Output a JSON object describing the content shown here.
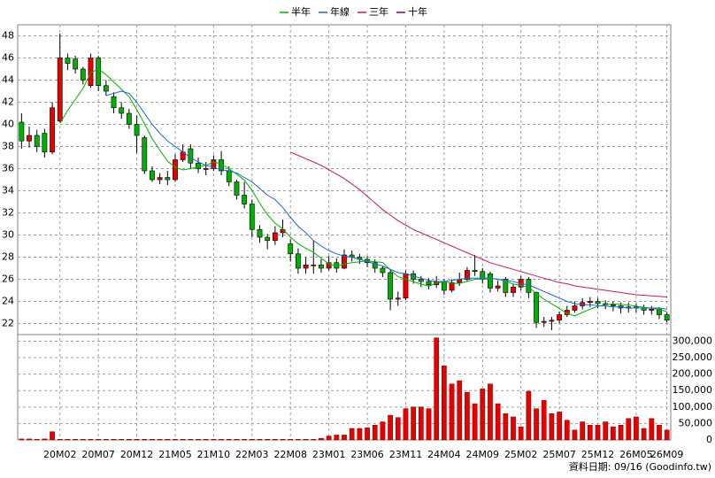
{
  "chart_data": {
    "type": "candlestick",
    "legend": [
      {
        "name": "半年",
        "color": "#00b400",
        "values": [
          null,
          null,
          null,
          null,
          null,
          40.1,
          41.25,
          42.25,
          43.25,
          44.67,
          45,
          44.5,
          43.83,
          43.17,
          42.5,
          41.33,
          40.05,
          38.72,
          37.67,
          36.67,
          36.13,
          35.88,
          36,
          36.17,
          36.3,
          36.6,
          36.43,
          35.98,
          35.5,
          34.97,
          34.05,
          32.88,
          31.83,
          31.07,
          30.55,
          29.8,
          29.22,
          28.8,
          28.43,
          27.9,
          27.4,
          27.18,
          27.38,
          27.5,
          27.58,
          27.67,
          27.58,
          27.52,
          26.85,
          26.23,
          26.02,
          25.77,
          25.57,
          25.38,
          25.65,
          25.77,
          25.63,
          25.63,
          25.8,
          26,
          26.03,
          26.07,
          26.02,
          25.82,
          25.57,
          25.45,
          25.25,
          24.73,
          24.2,
          23.78,
          23.37,
          22.9,
          22.7,
          23,
          23.3,
          23.55,
          23.7,
          23.77,
          23.73,
          23.67,
          23.57,
          23.47,
          23.4,
          23.27,
          23.08
        ]
      },
      {
        "name": "年線",
        "color": "#1e64dc",
        "values": [
          null,
          null,
          null,
          null,
          null,
          null,
          null,
          null,
          null,
          null,
          null,
          42.6,
          42.8,
          43,
          42.8,
          42,
          41,
          40,
          39.2,
          38.5,
          38,
          37.5,
          37,
          36.6,
          36.3,
          36.1,
          35.9,
          35.8,
          35.6,
          35.2,
          34.8,
          34.2,
          33.6,
          33.2,
          32.5,
          31.6,
          30.8,
          30.2,
          29.5,
          29,
          28.6,
          28.3,
          28.1,
          28,
          27.8,
          27.6,
          27.4,
          27.2,
          26.9,
          26.6,
          26.5,
          26.3,
          26.1,
          25.9,
          25.8,
          25.8,
          25.9,
          26,
          26.1,
          26.1,
          26.1,
          26.1,
          26,
          25.9,
          25.8,
          25.6,
          25.5,
          25.2,
          24.9,
          24.6,
          24.3,
          24,
          23.8,
          23.7,
          23.7,
          23.6,
          23.6,
          23.5,
          23.5,
          23.4,
          23.4,
          23.4,
          23.4,
          23.4,
          23.3
        ]
      },
      {
        "name": "三年",
        "color": "#c8146e",
        "values": [
          null,
          null,
          null,
          null,
          null,
          null,
          null,
          null,
          null,
          null,
          null,
          null,
          null,
          null,
          null,
          null,
          null,
          null,
          null,
          null,
          null,
          null,
          null,
          null,
          null,
          null,
          null,
          null,
          null,
          null,
          null,
          null,
          null,
          null,
          null,
          37.5,
          37.2,
          36.9,
          36.6,
          36.3,
          35.9,
          35.5,
          35.1,
          34.6,
          34.1,
          33.5,
          32.9,
          32.3,
          31.8,
          31.3,
          30.9,
          30.5,
          30.2,
          29.9,
          29.6,
          29.3,
          29,
          28.7,
          28.4,
          28.1,
          27.8,
          27.5,
          27.3,
          27.1,
          26.9,
          26.7,
          26.5,
          26.3,
          26.1,
          25.9,
          25.7,
          25.6,
          25.4,
          25.3,
          25.2,
          25.1,
          25,
          24.9,
          24.8,
          24.7,
          24.6,
          24.55,
          24.5,
          24.45,
          24.4
        ]
      },
      {
        "name": "十年",
        "color": "#800080",
        "values": [
          null,
          null,
          null,
          null,
          null,
          null,
          null,
          null,
          null,
          null,
          null,
          null,
          null,
          null,
          null,
          null,
          null,
          null,
          null,
          null,
          null,
          null,
          null,
          null,
          null,
          null,
          null,
          null,
          null,
          null,
          null,
          null,
          null,
          null,
          null,
          null,
          null,
          null,
          null,
          null,
          null,
          null,
          null,
          null,
          null,
          null,
          null,
          null,
          null,
          null,
          null,
          null,
          null,
          null,
          null,
          null,
          null,
          null,
          null,
          null,
          null,
          null,
          null,
          null,
          null,
          null,
          null,
          null,
          null,
          null,
          null,
          null,
          null,
          null,
          null,
          null,
          null,
          null,
          null,
          null,
          null,
          null,
          null,
          null,
          null
        ]
      }
    ],
    "categories": [
      null,
      null,
      null,
      null,
      null,
      "20M02",
      null,
      null,
      null,
      null,
      "20M07",
      null,
      null,
      null,
      null,
      "20M12",
      null,
      null,
      null,
      null,
      "21M05",
      null,
      null,
      null,
      null,
      "21M10",
      null,
      null,
      null,
      null,
      "22M03",
      null,
      null,
      null,
      null,
      "22M08",
      null,
      null,
      null,
      null,
      "23M01",
      null,
      null,
      null,
      null,
      "23M06",
      null,
      null,
      null,
      null,
      "23M11",
      null,
      null,
      null,
      null,
      "24M04",
      null,
      null,
      null,
      null,
      "24M09",
      null,
      null,
      null,
      null,
      "25M02",
      null,
      null,
      null,
      null,
      "25M07",
      null,
      null,
      null,
      null,
      "25M12",
      null,
      null,
      null,
      null,
      "26M05",
      null,
      null,
      null,
      "26M09"
    ],
    "open": [
      40.2,
      38.5,
      39,
      39.2,
      37.5,
      40.3,
      46,
      45.9,
      45,
      43.5,
      46,
      43.5,
      42.5,
      41.5,
      41,
      40,
      38.8,
      35.8,
      35,
      35.2,
      35,
      36.8,
      37.8,
      36.5,
      36,
      36,
      36.8,
      35.8,
      34.8,
      33.6,
      32.8,
      30.5,
      29.8,
      29.5,
      30.2,
      29.2,
      28.3,
      27,
      27.3,
      27.3,
      27,
      27.5,
      27,
      28.2,
      28,
      27.8,
      27.5,
      27,
      26.6,
      24.2,
      24.3,
      26.5,
      26,
      25.8,
      25.5,
      25.8,
      25,
      25.7,
      26,
      26.8,
      26.7,
      26.5,
      25.2,
      26,
      24.8,
      25.3,
      26,
      24.8,
      22.1,
      22.2,
      22.3,
      22.8,
      23.2,
      23.6,
      23.9,
      24,
      23.8,
      23.7,
      23.6,
      23.4,
      23.5,
      23.4,
      23.2,
      23.3,
      22.8
    ],
    "high": [
      41,
      39.8,
      39.5,
      39.6,
      42,
      48.2,
      46.4,
      46.2,
      45.2,
      46.4,
      46.2,
      44,
      42.9,
      42,
      41.4,
      40.8,
      39,
      36.2,
      35.6,
      35.8,
      37.3,
      38.2,
      38.2,
      37,
      36.6,
      37.2,
      37.6,
      36.2,
      35,
      34.8,
      33.2,
      30.9,
      30.1,
      30.8,
      31.4,
      29.6,
      28.8,
      28,
      29.5,
      27.8,
      28.1,
      27.9,
      28.7,
      28.6,
      28.3,
      28.1,
      27.8,
      27.2,
      26.8,
      24.9,
      26.8,
      26.8,
      26.3,
      26.1,
      26.3,
      26,
      26,
      26.6,
      27.1,
      28.2,
      27,
      26.7,
      25.9,
      26.2,
      25.6,
      26.3,
      26.2,
      24.9,
      22.6,
      22.6,
      23.1,
      23.6,
      24,
      24.3,
      24.4,
      24.3,
      24.1,
      24,
      23.9,
      23.9,
      23.8,
      23.7,
      23.6,
      23.5,
      23
    ],
    "low": [
      37.8,
      37.9,
      37.5,
      37,
      37.3,
      40.2,
      44.9,
      44.6,
      43.6,
      43.3,
      43,
      42.6,
      41,
      40.5,
      39.6,
      37.4,
      35.5,
      34.8,
      34.6,
      34.5,
      34.8,
      36.6,
      36,
      35.6,
      35.4,
      35.8,
      35.4,
      34.4,
      33.2,
      32.4,
      29.8,
      29.3,
      28.7,
      29.1,
      29.8,
      27.6,
      26.5,
      26.5,
      26.5,
      26.6,
      26.8,
      26.6,
      26.9,
      27.6,
      27.4,
      27.1,
      26.6,
      26.2,
      23.2,
      23.6,
      24.1,
      25.6,
      25.3,
      25.1,
      25.2,
      24.6,
      24.8,
      25.4,
      25.8,
      26.3,
      25.6,
      24.8,
      24.9,
      24.4,
      24.4,
      25,
      24.3,
      21.6,
      21.7,
      21.4,
      22,
      22.6,
      23,
      23.3,
      23.5,
      23.4,
      23.3,
      23.1,
      22.9,
      23,
      23,
      22.8,
      22.8,
      22.4,
      22.1
    ],
    "close": [
      38.5,
      39,
      38,
      37.5,
      41.5,
      46,
      45.5,
      45,
      44,
      46,
      43.5,
      43,
      41.5,
      41,
      40,
      39,
      35.8,
      35,
      35.2,
      35,
      36.8,
      37.5,
      36.5,
      36,
      36,
      36.8,
      35.8,
      34.8,
      33.6,
      32.8,
      30.5,
      29.8,
      29.5,
      30.2,
      30.5,
      28.3,
      27,
      27.3,
      27.3,
      27,
      27.5,
      27,
      28.2,
      28,
      27.8,
      27.5,
      27,
      26.6,
      24.2,
      24.3,
      26.5,
      26,
      25.8,
      25.5,
      25.8,
      25,
      25.7,
      26,
      26.8,
      26.7,
      26,
      25.2,
      25.4,
      24.8,
      25.3,
      26,
      24.8,
      22.1,
      22.2,
      22.3,
      22.8,
      23.2,
      23.6,
      23.9,
      24,
      23.8,
      23.7,
      23.6,
      23.4,
      23.5,
      23.4,
      23.2,
      23.3,
      22.8,
      22.3
    ],
    "up_color": "#e60000",
    "down_color": "#00b000",
    "ylim": [
      21,
      49
    ],
    "yticks": [
      22,
      24,
      26,
      28,
      30,
      32,
      34,
      36,
      38,
      40,
      42,
      44,
      46,
      48
    ],
    "grid": true,
    "volume": {
      "color": "#e60000",
      "values": [
        3000,
        3000,
        2000,
        3000,
        25000,
        2000,
        2000,
        2000,
        2000,
        2000,
        2000,
        2000,
        2000,
        2000,
        2000,
        2000,
        2000,
        2000,
        2000,
        2000,
        2000,
        2000,
        2000,
        2000,
        2000,
        2000,
        2000,
        2000,
        2000,
        2000,
        2000,
        2000,
        2000,
        2000,
        2000,
        2000,
        2000,
        2000,
        2000,
        5000,
        12000,
        15000,
        15000,
        35000,
        35000,
        37000,
        45000,
        55000,
        75000,
        68000,
        95000,
        100000,
        100000,
        95000,
        310000,
        225000,
        170000,
        180000,
        145000,
        110000,
        155000,
        170000,
        110000,
        80000,
        70000,
        40000,
        148000,
        95000,
        120000,
        80000,
        85000,
        60000,
        30000,
        55000,
        45000,
        45000,
        55000,
        40000,
        45000,
        65000,
        70000,
        35000,
        65000,
        45000,
        30000
      ],
      "ylim": [
        0,
        320000
      ],
      "yticks": [
        0,
        {
          "value": 50000,
          "label": "50,000"
        },
        {
          "value": 100000,
          "label": "100,000"
        },
        {
          "value": 150000,
          "label": "150,000"
        },
        {
          "value": 200000,
          "label": "200,000"
        },
        {
          "value": 250000,
          "label": "250,000"
        },
        {
          "value": 300000,
          "label": "300,000"
        }
      ]
    },
    "footer": "資料日期: 09/16  (Goodinfo.tw)"
  }
}
